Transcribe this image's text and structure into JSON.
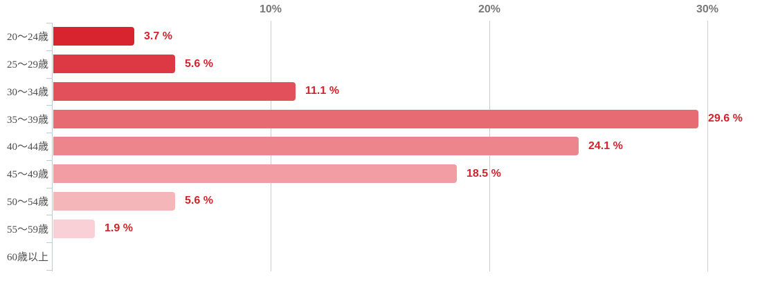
{
  "chart_data": {
    "type": "bar",
    "orientation": "horizontal",
    "title": "",
    "xlabel": "",
    "ylabel": "",
    "xlim": [
      0,
      30
    ],
    "grid": "vertical",
    "legend": "none",
    "categories": [
      "20〜24歳",
      "25〜29歳",
      "30〜34歳",
      "35〜39歳",
      "40〜44歳",
      "45〜49歳",
      "50〜54歳",
      "55〜59歳",
      "60歳以上"
    ],
    "values": [
      3.7,
      5.6,
      11.1,
      29.6,
      24.1,
      18.5,
      5.6,
      1.9,
      0
    ],
    "value_labels": [
      "3.7 %",
      "5.6 %",
      "11.1 %",
      "29.6 %",
      "24.1 %",
      "18.5 %",
      "5.6 %",
      "1.9 %",
      ""
    ],
    "bar_colors": [
      "#d8242f",
      "#dc3944",
      "#e2515b",
      "#e76b73",
      "#ed858c",
      "#f19da3",
      "#f5b6ba",
      "#f8d0d5",
      null
    ],
    "x_ticks": [
      {
        "label": "10%",
        "value": 10
      },
      {
        "label": "20%",
        "value": 20
      },
      {
        "label": "30%",
        "value": 30
      }
    ],
    "colors": {
      "value_label": "#d2232b",
      "tick_label": "#777777",
      "gridline": "#cccccc",
      "axis_line": "#b9cdd9",
      "category_label": "#4d4d4d",
      "background": "#ffffff"
    }
  }
}
